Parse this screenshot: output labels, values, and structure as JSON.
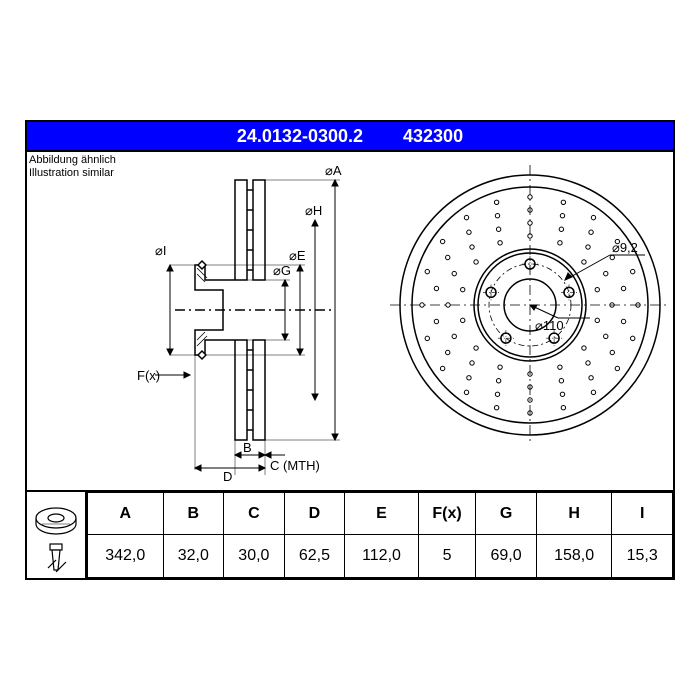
{
  "header": {
    "part_no": "24.0132-0300.2",
    "code": "432300",
    "bg_color": "#0000ff",
    "text_color": "#ffffff"
  },
  "caption": {
    "line1": "Abbildung ähnlich",
    "line2": "Illustration similar"
  },
  "side_view": {
    "labels": {
      "I": "⌀I",
      "G": "⌀G",
      "E": "⌀E",
      "H": "⌀H",
      "A": "⌀A",
      "F": "F(x)",
      "B": "B",
      "D": "D",
      "C": "C (MTH)"
    },
    "disc_outer_h": 260,
    "disc_w": 36,
    "hub_h": 130,
    "hub_w": 60
  },
  "front_view": {
    "outer_d": 260,
    "hub_d": 104,
    "bore_d": 52,
    "bolt_circle_d": 82,
    "bolt_d": 10,
    "bolt_count": 5,
    "labels": {
      "bore": "⌀110",
      "bolt": "⌀9,2"
    }
  },
  "table": {
    "columns": [
      "A",
      "B",
      "C",
      "D",
      "E",
      "F(x)",
      "G",
      "H",
      "I"
    ],
    "values": [
      "342,0",
      "32,0",
      "30,0",
      "62,5",
      "112,0",
      "5",
      "69,0",
      "158,0",
      "15,3"
    ]
  },
  "colors": {
    "line": "#000000",
    "fill": "#ffffff"
  }
}
